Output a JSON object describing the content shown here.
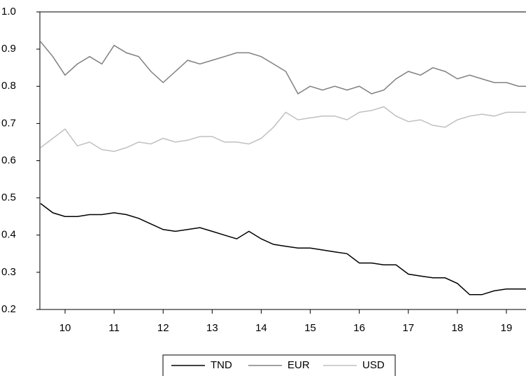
{
  "chart_data": {
    "type": "line",
    "x": [
      9.5,
      9.75,
      10,
      10.25,
      10.5,
      10.75,
      11,
      11.25,
      11.5,
      11.75,
      12,
      12.25,
      12.5,
      12.75,
      13,
      13.25,
      13.5,
      13.75,
      14,
      14.25,
      14.5,
      14.75,
      15,
      15.25,
      15.5,
      15.75,
      16,
      16.25,
      16.5,
      16.75,
      17,
      17.25,
      17.5,
      17.75,
      18,
      18.25,
      18.5,
      18.75,
      19,
      19.25,
      19.4
    ],
    "series": [
      {
        "name": "TND",
        "color": "#000000",
        "values": [
          0.485,
          0.46,
          0.45,
          0.45,
          0.455,
          0.455,
          0.46,
          0.455,
          0.445,
          0.43,
          0.415,
          0.41,
          0.415,
          0.42,
          0.41,
          0.4,
          0.39,
          0.41,
          0.39,
          0.375,
          0.37,
          0.365,
          0.365,
          0.36,
          0.355,
          0.35,
          0.325,
          0.325,
          0.32,
          0.32,
          0.295,
          0.29,
          0.285,
          0.285,
          0.27,
          0.24,
          0.24,
          0.25,
          0.255,
          0.255,
          0.255
        ]
      },
      {
        "name": "EUR",
        "color": "#808080",
        "values": [
          0.92,
          0.88,
          0.83,
          0.86,
          0.88,
          0.86,
          0.91,
          0.89,
          0.88,
          0.84,
          0.81,
          0.84,
          0.87,
          0.86,
          0.87,
          0.88,
          0.89,
          0.89,
          0.88,
          0.86,
          0.84,
          0.78,
          0.8,
          0.79,
          0.8,
          0.79,
          0.8,
          0.78,
          0.79,
          0.82,
          0.84,
          0.83,
          0.85,
          0.84,
          0.82,
          0.83,
          0.82,
          0.81,
          0.81,
          0.8,
          0.8
        ]
      },
      {
        "name": "USD",
        "color": "#c0c0c0",
        "values": [
          0.635,
          0.66,
          0.685,
          0.64,
          0.65,
          0.63,
          0.625,
          0.635,
          0.65,
          0.645,
          0.66,
          0.65,
          0.655,
          0.665,
          0.665,
          0.65,
          0.65,
          0.645,
          0.66,
          0.69,
          0.73,
          0.71,
          0.715,
          0.72,
          0.72,
          0.71,
          0.73,
          0.735,
          0.745,
          0.72,
          0.705,
          0.71,
          0.695,
          0.69,
          0.71,
          0.72,
          0.725,
          0.72,
          0.73,
          0.73,
          0.73
        ]
      }
    ],
    "xlim": [
      9.486,
      19.4
    ],
    "xticks": [
      10,
      11,
      12,
      13,
      14,
      15,
      16,
      17,
      18,
      19
    ],
    "ylim": [
      0.2,
      1.0
    ],
    "yticks": [
      0.2,
      0.3,
      0.4,
      0.5,
      0.6,
      0.7,
      0.8,
      0.9,
      {
        "value": 1.0,
        "label": "1.0"
      }
    ],
    "legend": "bottom"
  }
}
